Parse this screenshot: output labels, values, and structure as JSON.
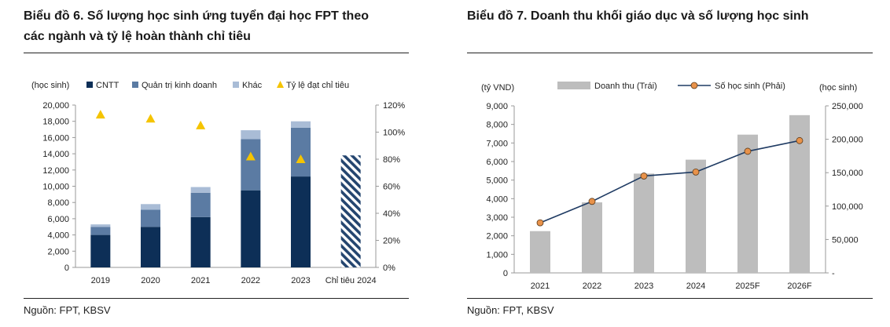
{
  "left": {
    "title_line1": "Biểu đồ 6. Số lượng học sinh ứng tuyển đại học FPT theo",
    "title_line2": "các ngành và tỷ lệ hoàn thành chỉ tiêu",
    "source": "Nguồn: FPT, KBSV",
    "colors": {
      "cntt": "#0d2f57",
      "qtkd": "#5b7ba3",
      "khac": "#a9bcd6",
      "marker": "#f5c400",
      "hatch": "#24456f",
      "axis": "#999999"
    }
  },
  "right": {
    "title": "Biểu đồ 7.  Doanh thu khối giáo dục và số lượng học sinh",
    "source": "Nguồn: FPT, KBSV",
    "colors": {
      "bar": "#bdbdbd",
      "line": "#1f3b63",
      "marker": "#e8924a"
    }
  },
  "chart_data": [
    {
      "type": "bar",
      "stacked": true,
      "categories": [
        "2019",
        "2020",
        "2021",
        "2022",
        "2023",
        "Chỉ tiêu 2024"
      ],
      "series": [
        {
          "name": "CNTT",
          "values": [
            4000,
            5000,
            6200,
            9500,
            11200,
            null
          ]
        },
        {
          "name": "Quản trị kinh doanh",
          "values": [
            1000,
            2100,
            3000,
            6300,
            6000,
            null
          ]
        },
        {
          "name": "Khác",
          "values": [
            300,
            700,
            700,
            1100,
            800,
            null
          ]
        },
        {
          "name": "Chỉ tiêu 2024",
          "values": [
            null,
            null,
            null,
            null,
            null,
            13800
          ]
        }
      ],
      "line_series": {
        "name": "Tỷ lệ đạt chỉ tiêu",
        "axis": "right",
        "values": [
          113,
          110,
          105,
          82,
          80,
          null
        ]
      },
      "ylabel_left": "(học sinh)",
      "ylim_left": [
        0,
        20000
      ],
      "yticks_left": [
        "0",
        "2,000",
        "4,000",
        "6,000",
        "8,000",
        "10,000",
        "12,000",
        "14,000",
        "16,000",
        "18,000",
        "20,000"
      ],
      "ylim_right": [
        0,
        120
      ],
      "yticks_right": [
        "0%",
        "20%",
        "40%",
        "60%",
        "80%",
        "100%",
        "120%"
      ],
      "legend": [
        "CNTT",
        "Quản trị kinh doanh",
        "Khác",
        "Tỷ lệ đạt chỉ tiêu"
      ],
      "legend_position": "top"
    },
    {
      "type": "bar",
      "categories": [
        "2021",
        "2022",
        "2023",
        "2024",
        "2025F",
        "2026F"
      ],
      "series": [
        {
          "name": "Doanh thu (Trái)",
          "axis": "left",
          "values": [
            2250,
            3800,
            5350,
            6100,
            7450,
            8500
          ]
        }
      ],
      "line_series": {
        "name": "Số học sinh (Phải)",
        "axis": "right",
        "values": [
          75000,
          107000,
          145000,
          151000,
          182000,
          198000
        ]
      },
      "ylabel_left": "(tỷ VND)",
      "ylabel_right": "(học sinh)",
      "ylim_left": [
        0,
        9000
      ],
      "yticks_left": [
        "0",
        "1,000",
        "2,000",
        "3,000",
        "4,000",
        "5,000",
        "6,000",
        "7,000",
        "8,000",
        "9,000"
      ],
      "ylim_right": [
        0,
        250000
      ],
      "yticks_right": [
        "-",
        "50,000",
        "100,000",
        "150,000",
        "200,000",
        "250,000"
      ],
      "legend": [
        "Doanh thu (Trái)",
        "Số học sinh (Phải)"
      ],
      "legend_position": "top"
    }
  ]
}
